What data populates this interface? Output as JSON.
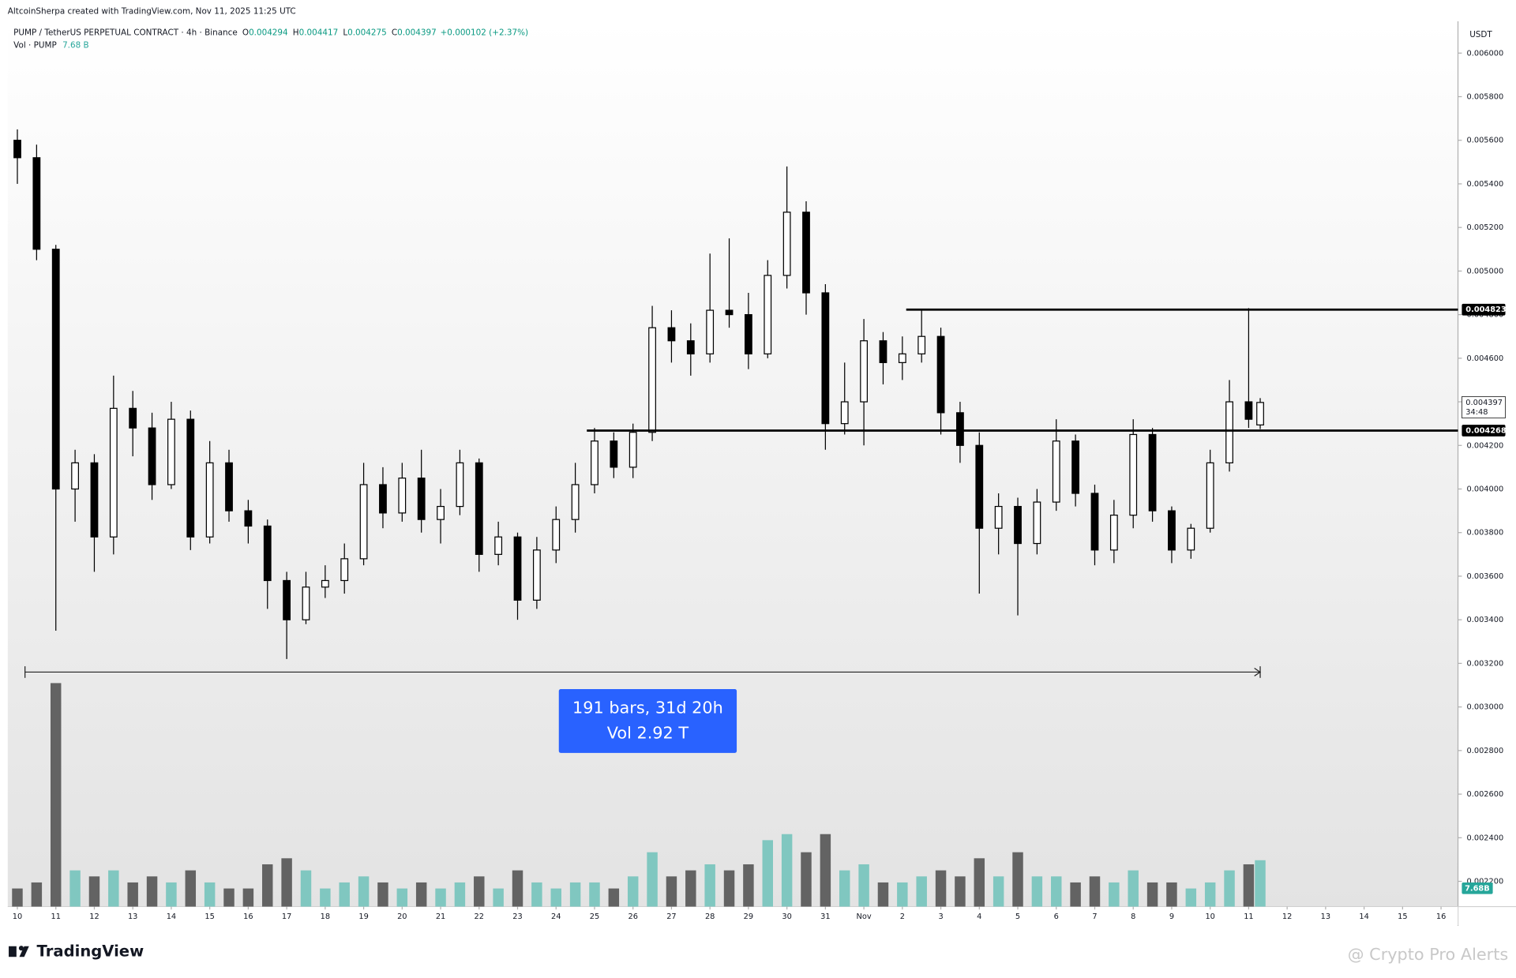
{
  "header": {
    "credit": "AltcoinSherpa created with TradingView.com, Nov 11, 2025 11:25 UTC",
    "symbol": "PUMP / TetherUS PERPETUAL CONTRACT · 4h · Binance",
    "ohlc_legend": [
      {
        "label": "O",
        "value": 0.004294
      },
      {
        "label": "H",
        "value": 0.004417
      },
      {
        "label": "L",
        "value": 0.004275
      },
      {
        "label": "C",
        "value": 0.004397
      }
    ],
    "change": "+0.000102 (+2.37%)",
    "vol_legend": "Vol · PUMP",
    "vol_legend_value": "7.68 B"
  },
  "chart_data": {
    "type": "candlestick",
    "y_unit": "USDT",
    "xlim": [
      -0.25,
      37.44
    ],
    "ylim": [
      0.002084,
      0.006146
    ],
    "vol_ylim": [
      0,
      40
    ],
    "grid": false,
    "up_color": "#ffffff",
    "down_color": "#000000",
    "vol_up_color": "#80c7c0",
    "vol_down_color": "#636363",
    "x": [
      0,
      0.5,
      1,
      1.5,
      2,
      2.5,
      3,
      3.5,
      4,
      4.5,
      5,
      5.5,
      6,
      6.5,
      7,
      7.5,
      8,
      8.5,
      9,
      9.5,
      10,
      10.5,
      11,
      11.5,
      12,
      12.5,
      13,
      13.5,
      14,
      14.5,
      15,
      15.5,
      16,
      16.5,
      17,
      17.5,
      18,
      18.5,
      19,
      19.5,
      20,
      20.5,
      21,
      21.5,
      22,
      22.5,
      23,
      23.5,
      24,
      24.5,
      25,
      25.5,
      26,
      26.5,
      27,
      27.5,
      28,
      28.5,
      29,
      29.5,
      30,
      30.5,
      31,
      31.5,
      32,
      32.3
    ],
    "open": [
      0.0056,
      0.00552,
      0.0051,
      0.004,
      0.00412,
      0.00378,
      0.00437,
      0.00428,
      0.00402,
      0.00432,
      0.00378,
      0.00412,
      0.0039,
      0.00383,
      0.00358,
      0.0034,
      0.00355,
      0.00358,
      0.00368,
      0.00402,
      0.00389,
      0.00405,
      0.00386,
      0.00392,
      0.00412,
      0.0037,
      0.00378,
      0.00349,
      0.00372,
      0.00386,
      0.00402,
      0.00422,
      0.0041,
      0.00426,
      0.00474,
      0.00468,
      0.00462,
      0.00482,
      0.0048,
      0.00462,
      0.00498,
      0.00527,
      0.0049,
      0.0043,
      0.0044,
      0.00468,
      0.00458,
      0.00462,
      0.0047,
      0.00435,
      0.0042,
      0.00382,
      0.00392,
      0.00375,
      0.00394,
      0.00422,
      0.00398,
      0.00372,
      0.00388,
      0.00425,
      0.0039,
      0.00372,
      0.00382,
      0.00412,
      0.0044,
      0.004294
    ],
    "high": [
      0.00565,
      0.00558,
      0.00512,
      0.00418,
      0.00416,
      0.00452,
      0.00445,
      0.00435,
      0.0044,
      0.00436,
      0.00422,
      0.00418,
      0.00395,
      0.00386,
      0.00362,
      0.00362,
      0.00365,
      0.00375,
      0.00412,
      0.0041,
      0.00412,
      0.00418,
      0.004,
      0.00418,
      0.00414,
      0.00385,
      0.0038,
      0.00378,
      0.00392,
      0.00412,
      0.00428,
      0.00426,
      0.0043,
      0.00484,
      0.00482,
      0.00476,
      0.00508,
      0.00515,
      0.0049,
      0.00505,
      0.00548,
      0.00532,
      0.00494,
      0.00458,
      0.00478,
      0.00472,
      0.0047,
      0.00482,
      0.00474,
      0.0044,
      0.00426,
      0.00398,
      0.00396,
      0.004,
      0.00432,
      0.00425,
      0.00402,
      0.00395,
      0.00432,
      0.00428,
      0.00392,
      0.00384,
      0.00418,
      0.0045,
      0.00483,
      0.004417
    ],
    "low": [
      0.0054,
      0.00505,
      0.00335,
      0.00385,
      0.00362,
      0.0037,
      0.00415,
      0.00395,
      0.004,
      0.00372,
      0.00375,
      0.00385,
      0.00375,
      0.00345,
      0.00322,
      0.00338,
      0.0035,
      0.00352,
      0.00365,
      0.00382,
      0.00385,
      0.0038,
      0.00375,
      0.00388,
      0.00362,
      0.00365,
      0.0034,
      0.00345,
      0.00366,
      0.0038,
      0.00398,
      0.00405,
      0.00405,
      0.00422,
      0.00458,
      0.00452,
      0.00458,
      0.00474,
      0.00455,
      0.0046,
      0.00492,
      0.0048,
      0.00418,
      0.00425,
      0.0042,
      0.00448,
      0.0045,
      0.00458,
      0.00425,
      0.00412,
      0.00352,
      0.0037,
      0.00342,
      0.0037,
      0.0039,
      0.00392,
      0.00365,
      0.00366,
      0.00382,
      0.00385,
      0.00366,
      0.00368,
      0.0038,
      0.00408,
      0.00428,
      0.004275
    ],
    "close": [
      0.00552,
      0.0051,
      0.004,
      0.00412,
      0.00378,
      0.00437,
      0.00428,
      0.00402,
      0.00432,
      0.00378,
      0.00412,
      0.0039,
      0.00383,
      0.00358,
      0.0034,
      0.00355,
      0.00358,
      0.00368,
      0.00402,
      0.00389,
      0.00405,
      0.00386,
      0.00392,
      0.00412,
      0.0037,
      0.00378,
      0.00349,
      0.00372,
      0.00386,
      0.00402,
      0.00422,
      0.0041,
      0.00426,
      0.00474,
      0.00468,
      0.00462,
      0.00482,
      0.0048,
      0.00462,
      0.00498,
      0.00527,
      0.0049,
      0.0043,
      0.0044,
      0.00468,
      0.00458,
      0.00462,
      0.0047,
      0.00435,
      0.0042,
      0.00382,
      0.00392,
      0.00375,
      0.00394,
      0.00422,
      0.00398,
      0.00372,
      0.00388,
      0.00425,
      0.0039,
      0.00372,
      0.00382,
      0.00412,
      0.0044,
      0.00432,
      0.004397
    ],
    "volume": [
      3,
      4,
      37,
      6,
      5,
      6,
      4,
      5,
      4,
      6,
      4,
      3,
      3,
      7,
      8,
      6,
      3,
      4,
      5,
      4,
      3,
      4,
      3,
      4,
      5,
      3,
      6,
      4,
      3,
      4,
      4,
      3,
      5,
      9,
      5,
      6,
      7,
      6,
      7,
      11,
      12,
      9,
      12,
      6,
      7,
      4,
      4,
      5,
      6,
      5,
      8,
      5,
      9,
      5,
      5,
      4,
      5,
      4,
      6,
      4,
      4,
      3,
      4,
      6,
      7,
      7.68
    ],
    "vol_axis_label": "7.68B",
    "yticks": [
      {
        "value": 0.006,
        "label": "0.006000"
      },
      {
        "value": 0.0058,
        "label": "0.005800"
      },
      {
        "value": 0.0056,
        "label": "0.005600"
      },
      {
        "value": 0.0054,
        "label": "0.005400"
      },
      {
        "value": 0.0052,
        "label": "0.005200"
      },
      {
        "value": 0.005,
        "label": "0.005000"
      },
      {
        "value": 0.0048,
        "label": "0.004800"
      },
      {
        "value": 0.0046,
        "label": "0.004600"
      },
      {
        "value": 0.0044,
        "label": "0.004400"
      },
      {
        "value": 0.0042,
        "label": "0.004200"
      },
      {
        "value": 0.004,
        "label": "0.004000"
      },
      {
        "value": 0.0038,
        "label": "0.003800"
      },
      {
        "value": 0.0036,
        "label": "0.003600"
      },
      {
        "value": 0.0034,
        "label": "0.003400"
      },
      {
        "value": 0.0032,
        "label": "0.003200"
      },
      {
        "value": 0.003,
        "label": "0.003000"
      },
      {
        "value": 0.0028,
        "label": "0.002800"
      },
      {
        "value": 0.0026,
        "label": "0.002600"
      },
      {
        "value": 0.0024,
        "label": "0.002400"
      },
      {
        "value": 0.0022,
        "label": "0.002200"
      }
    ],
    "xticks": [
      {
        "value": 0,
        "label": "10"
      },
      {
        "value": 1,
        "label": "11"
      },
      {
        "value": 2,
        "label": "12"
      },
      {
        "value": 3,
        "label": "13"
      },
      {
        "value": 4,
        "label": "14"
      },
      {
        "value": 5,
        "label": "15"
      },
      {
        "value": 6,
        "label": "16"
      },
      {
        "value": 7,
        "label": "17"
      },
      {
        "value": 8,
        "label": "18"
      },
      {
        "value": 9,
        "label": "19"
      },
      {
        "value": 10,
        "label": "20"
      },
      {
        "value": 11,
        "label": "21"
      },
      {
        "value": 12,
        "label": "22"
      },
      {
        "value": 13,
        "label": "23"
      },
      {
        "value": 14,
        "label": "24"
      },
      {
        "value": 15,
        "label": "25"
      },
      {
        "value": 16,
        "label": "26"
      },
      {
        "value": 17,
        "label": "27"
      },
      {
        "value": 18,
        "label": "28"
      },
      {
        "value": 19,
        "label": "29"
      },
      {
        "value": 20,
        "label": "30"
      },
      {
        "value": 21,
        "label": "31"
      },
      {
        "value": 22,
        "label": "Nov"
      },
      {
        "value": 23,
        "label": "2"
      },
      {
        "value": 24,
        "label": "3"
      },
      {
        "value": 25,
        "label": "4"
      },
      {
        "value": 26,
        "label": "5"
      },
      {
        "value": 27,
        "label": "6"
      },
      {
        "value": 28,
        "label": "7"
      },
      {
        "value": 29,
        "label": "8"
      },
      {
        "value": 30,
        "label": "9"
      },
      {
        "value": 31,
        "label": "10"
      },
      {
        "value": 32,
        "label": "11"
      },
      {
        "value": 33,
        "label": "12"
      },
      {
        "value": 34,
        "label": "13"
      },
      {
        "value": 35,
        "label": "14"
      },
      {
        "value": 36,
        "label": "15"
      },
      {
        "value": 37,
        "label": "16"
      }
    ],
    "levels": [
      {
        "value": 0.004823,
        "x_start": 23.1
      },
      {
        "value": 0.004268,
        "x_start": 14.8
      }
    ],
    "current_price": 0.004397,
    "countdown": "34:48",
    "measure": {
      "price": 0.00316,
      "x_start": 0.5,
      "x_end": 32.3,
      "text": [
        "191 bars, 31d 20h",
        "Vol 2.92 T"
      ]
    }
  },
  "footer": {
    "logo": "TradingView",
    "watermark": "@ Crypto Pro Alerts"
  }
}
